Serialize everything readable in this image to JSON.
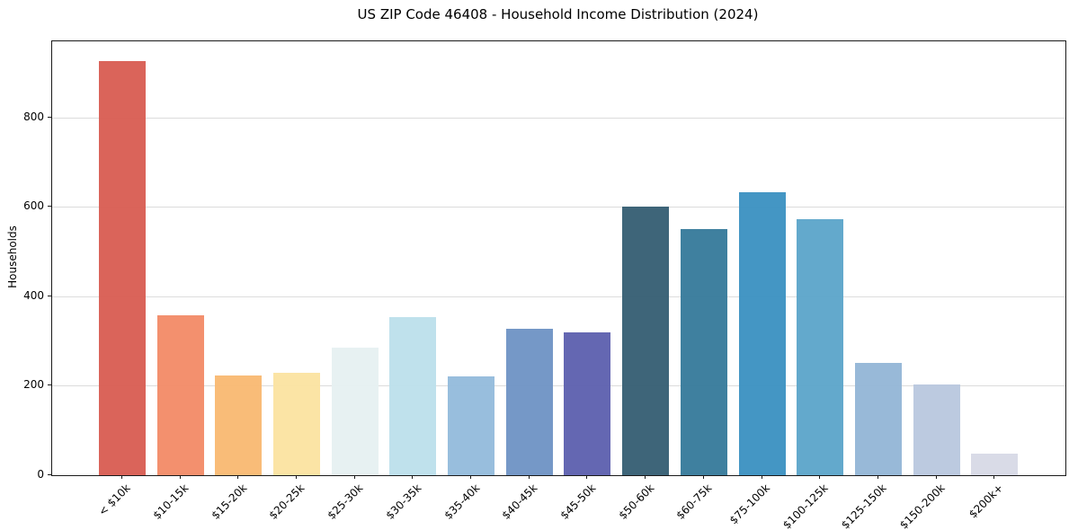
{
  "chart_data": {
    "type": "bar",
    "title": "US ZIP Code 46408 - Household Income Distribution (2024)",
    "xlabel": "",
    "ylabel": "Households",
    "categories": [
      "< $10k",
      "$10-15k",
      "$15-20k",
      "$20-25k",
      "$25-30k",
      "$30-35k",
      "$35-40k",
      "$40-45k",
      "$45-50k",
      "$50-60k",
      "$60-75k",
      "$75-100k",
      "$100-125k",
      "$125-150k",
      "$150-200k",
      "$200k+"
    ],
    "values": [
      925,
      357,
      222,
      228,
      286,
      353,
      220,
      327,
      320,
      600,
      550,
      633,
      572,
      252,
      202,
      48
    ],
    "bar_colors": [
      "#d85c51",
      "#f28a66",
      "#f9b871",
      "#fbe3a0",
      "#e6f0f1",
      "#bcdfeb",
      "#92bbdb",
      "#6e92c4",
      "#5c5fae",
      "#345d72",
      "#35799a",
      "#3a90c1",
      "#5ba4c9",
      "#92b5d6",
      "#b8c7de",
      "#d7d9e6"
    ],
    "yticks": [
      0,
      200,
      400,
      600,
      800
    ],
    "ylim": [
      0,
      970
    ],
    "grid": "horizontal",
    "gridline_color": "#dcdcdc",
    "legend": "none",
    "background_color": "#ffffff",
    "spine_color": "#1a1a1a"
  }
}
